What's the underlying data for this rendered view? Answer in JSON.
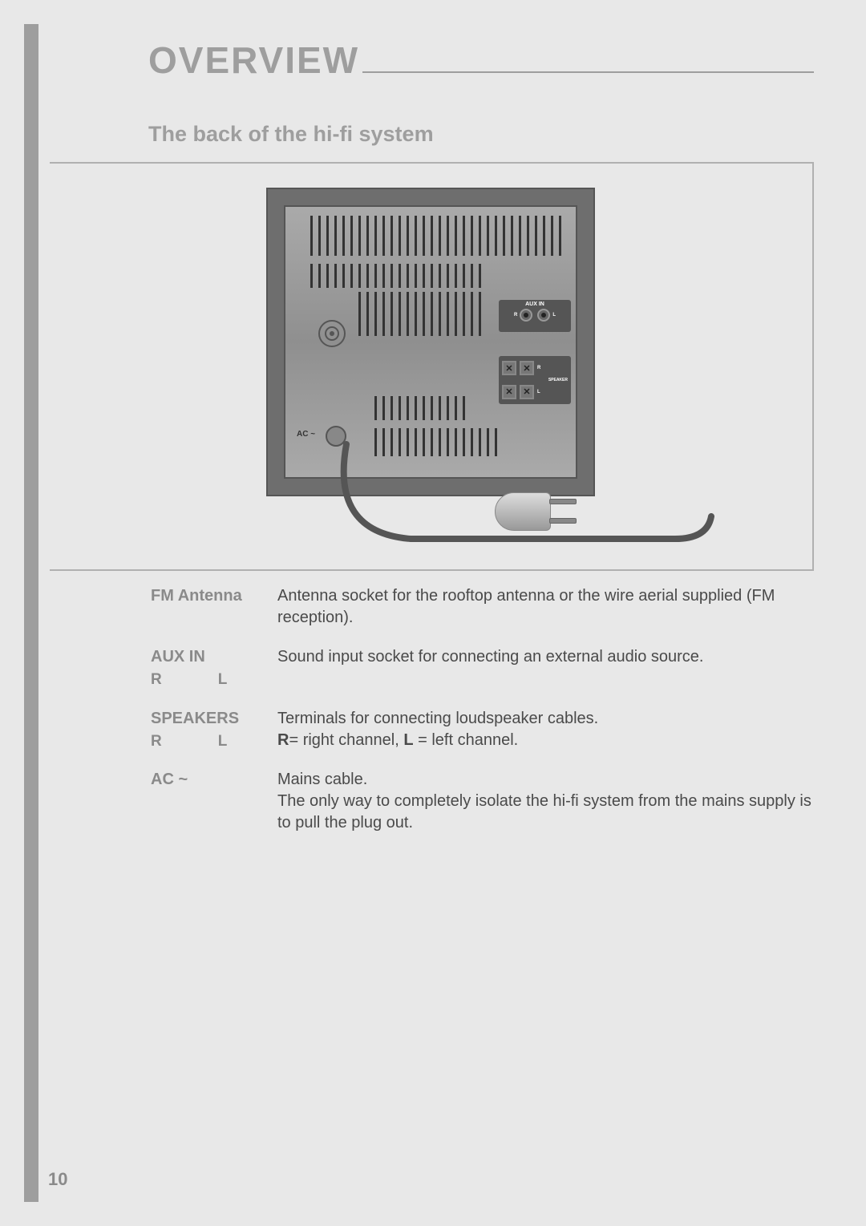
{
  "title": "OVERVIEW",
  "subtitle": "The back of the hi-fi system",
  "page_number": "10",
  "colors": {
    "page_bg": "#e8e8e8",
    "accent_gray": "#9e9e9e",
    "text_gray": "#4a4a4a",
    "label_gray": "#8a8a8a",
    "panel_dark": "#6e6e6e",
    "panel_inner": "#8f8f8f"
  },
  "typography": {
    "title_fontsize": 46,
    "subtitle_fontsize": 27,
    "body_fontsize": 20
  },
  "diagram": {
    "aux_label": "AUX IN",
    "aux_r": "R",
    "aux_l": "L",
    "speaker_label": "SPEAKER",
    "speaker_r": "R",
    "speaker_l": "L",
    "ac_label": "AC ~"
  },
  "definitions": [
    {
      "label": "FM Antenna",
      "sub": null,
      "desc": "Antenna socket for the rooftop antenna or the wire aerial supplied (FM reception)."
    },
    {
      "label": "AUX IN",
      "sub": [
        "R",
        "L"
      ],
      "desc": "Sound input socket for connecting an external audio source."
    },
    {
      "label": "SPEAKERS",
      "sub": [
        "R",
        "L"
      ],
      "desc": "Terminals for connecting loudspeaker cables.",
      "desc2_html": "<b>R</b>= right channel, <b>L</b> = left channel."
    },
    {
      "label": "AC ~",
      "sub": null,
      "desc": "Mains cable.",
      "desc2": "The only way to completely isolate the hi-fi system from the mains supply is to pull the plug out."
    }
  ]
}
